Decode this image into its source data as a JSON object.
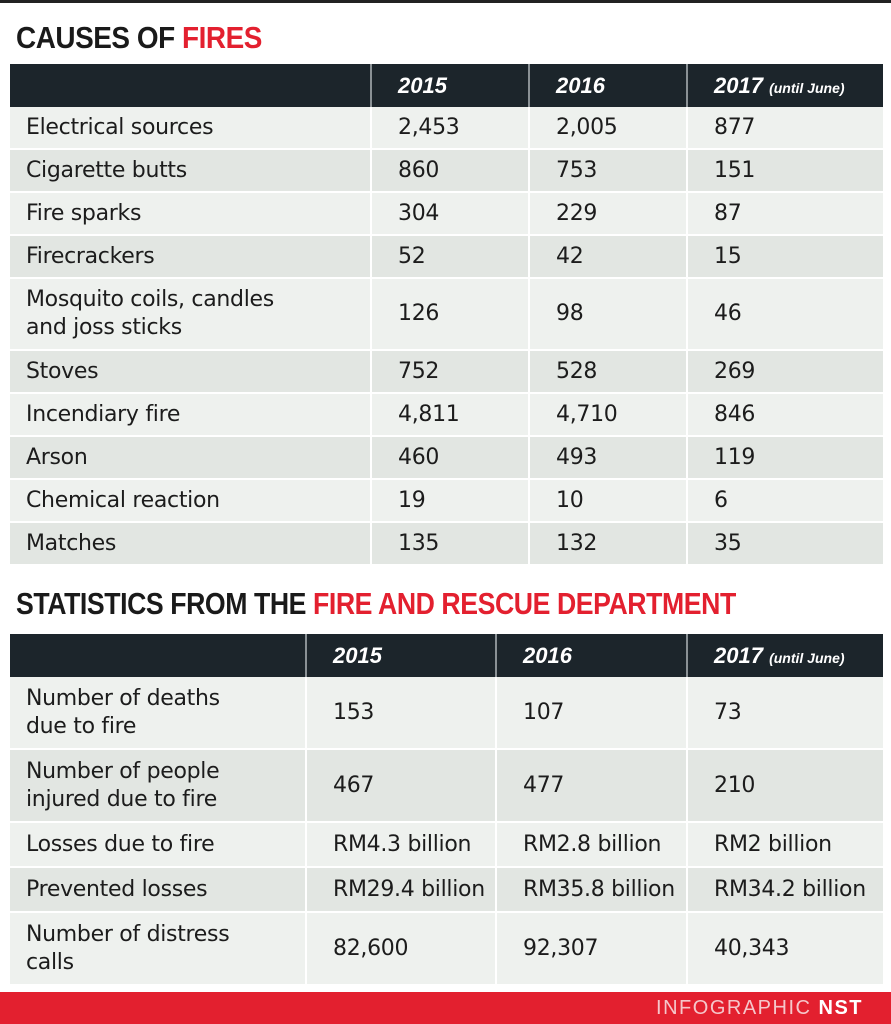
{
  "causes": {
    "title_black": "CAUSES OF ",
    "title_red": "FIRES",
    "headers": [
      "",
      "2015",
      "2016",
      "2017"
    ],
    "header_note": "(until June)",
    "rows": [
      {
        "label": "Electrical sources",
        "values": [
          "2,453",
          "2,005",
          "877"
        ]
      },
      {
        "label": "Cigarette butts",
        "values": [
          "860",
          "753",
          "151"
        ]
      },
      {
        "label": "Fire sparks",
        "values": [
          "304",
          "229",
          "87"
        ]
      },
      {
        "label": "Firecrackers",
        "values": [
          "52",
          "42",
          "15"
        ]
      },
      {
        "label": "Mosquito coils, candles and joss sticks",
        "values": [
          "126",
          "98",
          "46"
        ],
        "tall": true
      },
      {
        "label": "Stoves",
        "values": [
          "752",
          "528",
          "269"
        ]
      },
      {
        "label": "Incendiary fire",
        "values": [
          "4,811",
          "4,710",
          "846"
        ]
      },
      {
        "label": "Arson",
        "values": [
          "460",
          "493",
          "119"
        ]
      },
      {
        "label": "Chemical reaction",
        "values": [
          "19",
          "10",
          "6"
        ]
      },
      {
        "label": "Matches",
        "values": [
          "135",
          "132",
          "35"
        ]
      }
    ]
  },
  "stats": {
    "title_black": "STATISTICS FROM THE ",
    "title_red": "FIRE AND RESCUE DEPARTMENT",
    "headers": [
      "",
      "2015",
      "2016",
      "2017"
    ],
    "header_note": "(until June)",
    "rows": [
      {
        "label": "Number of deaths due to fire",
        "values": [
          "153",
          "107",
          "73"
        ],
        "tall": true
      },
      {
        "label": "Number of people injured due to fire",
        "values": [
          "467",
          "477",
          "210"
        ],
        "tall": true
      },
      {
        "label": "Losses due to fire",
        "values": [
          "RM4.3 billion",
          "RM2.8 billion",
          "RM2 billion"
        ]
      },
      {
        "label": "Prevented losses",
        "values": [
          "RM29.4 billion",
          "RM35.8 billion",
          "RM34.2 billion"
        ]
      },
      {
        "label": "Number of distress calls",
        "values": [
          "82,600",
          "92,307",
          "40,343"
        ],
        "tall": true
      }
    ]
  },
  "footer": {
    "prefix": "INFOGRAPHIC ",
    "brand": "NST"
  },
  "colors": {
    "accent": "#e3202f",
    "header_bg": "#1c252b"
  }
}
